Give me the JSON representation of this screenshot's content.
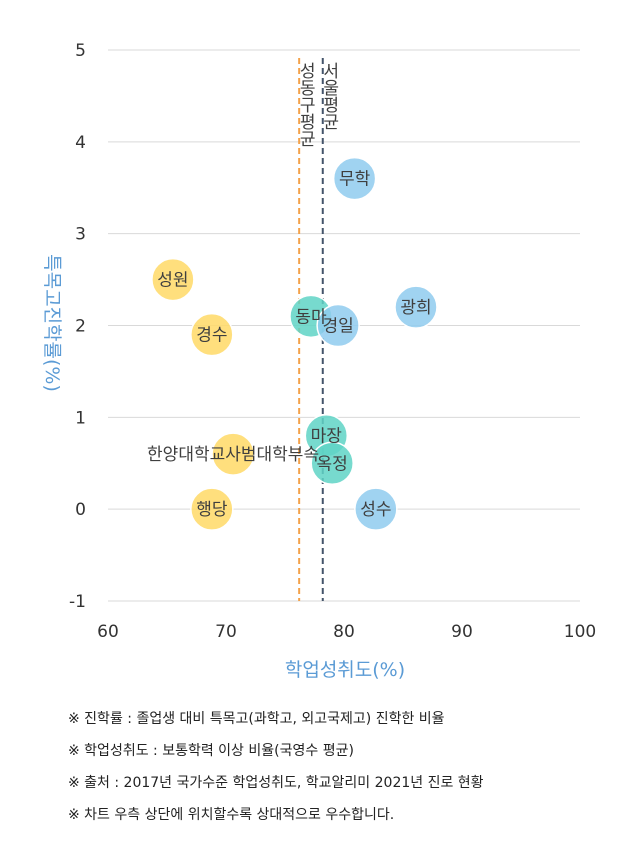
{
  "chart_data": {
    "type": "scatter",
    "xlabel": "학업성취도(%)",
    "ylabel": "특목고진학률(%)",
    "xlim": [
      60,
      100
    ],
    "ylim": [
      -1,
      5
    ],
    "x_ticks": [
      60,
      70,
      80,
      90,
      100
    ],
    "y_ticks": [
      -1,
      0,
      1,
      2,
      3,
      4,
      5
    ],
    "grid": "horizontal",
    "reference_lines": [
      {
        "label": "서울평균",
        "x": 78.2,
        "color": "#44546a"
      },
      {
        "label": "성동구평균",
        "x": 76.2,
        "color": "#f4a24a"
      }
    ],
    "group_colors": {
      "yellow": "#ffd966",
      "teal": "#5fd3c6",
      "blue": "#8fcbee"
    },
    "points": [
      {
        "label": "무학",
        "x": 80.9,
        "y": 3.6,
        "group": "blue"
      },
      {
        "label": "광희",
        "x": 86.1,
        "y": 2.2,
        "group": "blue"
      },
      {
        "label": "성원",
        "x": 65.5,
        "y": 2.5,
        "group": "yellow"
      },
      {
        "label": "경수",
        "x": 68.8,
        "y": 1.9,
        "group": "yellow"
      },
      {
        "label": "동마",
        "x": 77.2,
        "y": 2.1,
        "group": "teal"
      },
      {
        "label": "경일",
        "x": 79.5,
        "y": 2.0,
        "group": "blue"
      },
      {
        "label": "한양대학교사범대학부속",
        "x": 70.6,
        "y": 0.6,
        "group": "yellow"
      },
      {
        "label": "마장",
        "x": 78.5,
        "y": 0.8,
        "group": "teal"
      },
      {
        "label": "옥정",
        "x": 79.0,
        "y": 0.5,
        "group": "teal"
      },
      {
        "label": "행당",
        "x": 68.8,
        "y": 0.0,
        "group": "yellow"
      },
      {
        "label": "성수",
        "x": 82.7,
        "y": 0.0,
        "group": "blue"
      }
    ]
  },
  "notes": [
    "※ 진학률 : 졸업생 대비 특목고(과학고, 외고국제고) 진학한 비율",
    "※ 학업성취도 : 보통학력 이상 비율(국영수 평균)",
    "※ 출처 : 2017년 국가수준 학업성취도, 학교알리미 2021년 진로 현황",
    "※ 차트 우측 상단에 위치할수록 상대적으로 우수합니다."
  ]
}
